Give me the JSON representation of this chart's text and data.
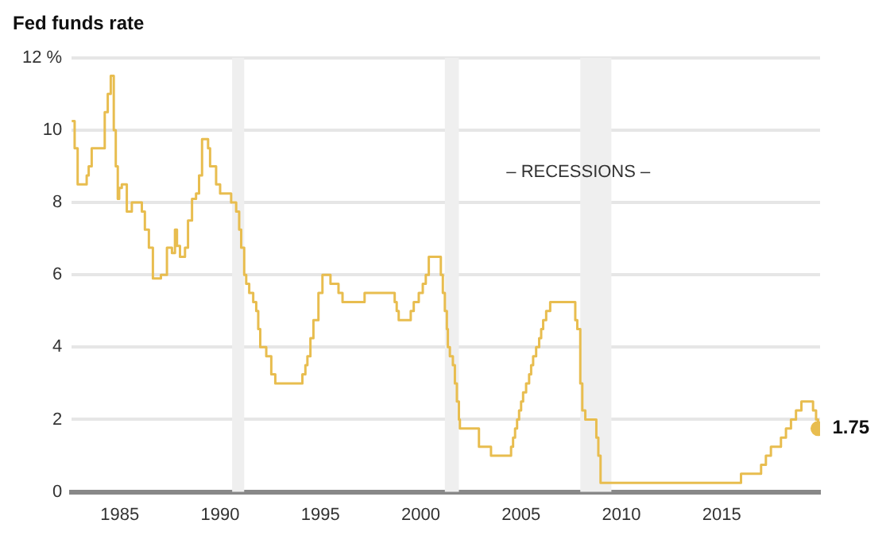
{
  "chart_data": {
    "type": "step",
    "title": "Fed funds rate",
    "x": [
      1982.6,
      1982.75,
      1982.9,
      1983.35,
      1983.45,
      1983.6,
      1984.25,
      1984.4,
      1984.55,
      1984.7,
      1984.8,
      1984.9,
      1984.97,
      1985.1,
      1985.35,
      1985.6,
      1986.1,
      1986.25,
      1986.45,
      1986.65,
      1987.05,
      1987.35,
      1987.6,
      1987.75,
      1987.85,
      1988.0,
      1988.25,
      1988.4,
      1988.6,
      1988.8,
      1988.95,
      1989.1,
      1989.4,
      1989.5,
      1989.8,
      1990.0,
      1990.55,
      1990.8,
      1990.95,
      1991.05,
      1991.2,
      1991.3,
      1991.45,
      1991.65,
      1991.8,
      1991.9,
      1992.0,
      1992.3,
      1992.55,
      1992.75,
      1994.1,
      1994.25,
      1994.35,
      1994.5,
      1994.65,
      1994.9,
      1995.1,
      1995.5,
      1995.9,
      1996.1,
      1997.2,
      1998.7,
      1998.8,
      1998.9,
      1999.5,
      1999.65,
      1999.9,
      2000.1,
      2000.25,
      2000.4,
      2001.0,
      2001.1,
      2001.2,
      2001.3,
      2001.35,
      2001.45,
      2001.6,
      2001.7,
      2001.8,
      2001.9,
      2001.95,
      2002.9,
      2003.5,
      2004.5,
      2004.6,
      2004.7,
      2004.8,
      2004.9,
      2005.0,
      2005.1,
      2005.25,
      2005.4,
      2005.5,
      2005.6,
      2005.75,
      2005.9,
      2006.0,
      2006.1,
      2006.25,
      2006.45,
      2007.7,
      2007.8,
      2007.95,
      2008.05,
      2008.2,
      2008.75,
      2008.85,
      2008.96,
      2015.96,
      2016.96,
      2017.2,
      2017.45,
      2017.95,
      2018.2,
      2018.45,
      2018.7,
      2018.97,
      2019.55,
      2019.7,
      2019.8
    ],
    "series": [
      {
        "color": "#e8bd4f",
        "values": [
          10.25,
          9.5,
          8.5,
          8.75,
          9.0,
          9.5,
          10.5,
          11.0,
          11.5,
          10.0,
          9.0,
          8.1,
          8.4,
          8.5,
          7.75,
          8.0,
          7.75,
          7.25,
          6.75,
          5.9,
          6.0,
          6.75,
          6.6,
          7.25,
          6.8,
          6.5,
          6.75,
          7.5,
          8.1,
          8.25,
          8.75,
          9.75,
          9.5,
          9.0,
          8.5,
          8.25,
          8.0,
          7.75,
          7.25,
          6.75,
          6.0,
          5.75,
          5.5,
          5.25,
          5.0,
          4.5,
          4.0,
          3.75,
          3.25,
          3.0,
          3.25,
          3.5,
          3.75,
          4.25,
          4.75,
          5.5,
          6.0,
          5.75,
          5.5,
          5.25,
          5.5,
          5.25,
          5.0,
          4.75,
          5.0,
          5.25,
          5.5,
          5.75,
          6.0,
          6.5,
          6.0,
          5.5,
          5.0,
          4.5,
          4.0,
          3.75,
          3.5,
          3.0,
          2.5,
          2.0,
          1.75,
          1.25,
          1.0,
          1.25,
          1.5,
          1.75,
          2.0,
          2.25,
          2.5,
          2.75,
          3.0,
          3.25,
          3.5,
          3.75,
          4.0,
          4.25,
          4.5,
          4.75,
          5.0,
          5.25,
          4.75,
          4.5,
          3.0,
          2.25,
          2.0,
          1.5,
          1.0,
          0.25,
          0.5,
          0.75,
          1.0,
          1.25,
          1.5,
          1.75,
          2.0,
          2.25,
          2.5,
          2.25,
          2.0,
          1.75
        ],
        "value_labels": [
          null,
          null,
          null,
          null,
          null,
          null,
          null,
          null,
          null,
          null,
          null,
          null,
          null,
          null,
          null,
          null,
          null,
          null,
          null,
          null,
          null,
          null,
          null,
          null,
          null,
          null,
          null,
          null,
          null,
          null,
          null,
          null,
          null,
          null,
          null,
          null,
          null,
          null,
          null,
          null,
          null,
          null,
          null,
          null,
          null,
          null,
          null,
          null,
          null,
          null,
          null,
          null,
          null,
          null,
          null,
          null,
          null,
          null,
          null,
          null,
          null,
          null,
          null,
          null,
          null,
          null,
          null,
          null,
          null,
          null,
          null,
          null,
          null,
          null,
          null,
          null,
          null,
          null,
          null,
          null,
          null,
          null,
          null,
          null,
          null,
          null,
          null,
          null,
          null,
          null,
          null,
          null,
          null,
          null,
          null,
          null,
          null,
          null,
          null,
          null,
          null,
          null,
          null,
          null,
          null,
          null,
          null,
          null,
          null,
          null,
          null,
          null,
          null,
          null,
          null,
          null,
          null,
          null,
          null,
          "1.75"
        ]
      }
    ],
    "xlim": [
      1982.6,
      2019.9
    ],
    "xticks": [
      1985,
      1990,
      1995,
      2000,
      2005,
      2010,
      2015
    ],
    "ylim": [
      0,
      12
    ],
    "yticks": [
      0,
      2,
      4,
      6,
      8,
      10,
      {
        "value": 12,
        "label": "12 %"
      }
    ],
    "grid": "y",
    "bands": [
      {
        "axis": "x",
        "from": 1990.6,
        "to": 1991.2,
        "color": "#efefef"
      },
      {
        "axis": "x",
        "from": 2001.2,
        "to": 2001.9,
        "color": "#efefef"
      },
      {
        "axis": "x",
        "from": 2007.95,
        "to": 2009.5,
        "color": "#efefef"
      }
    ],
    "annotations": [
      "– RECESSIONS –"
    ]
  }
}
